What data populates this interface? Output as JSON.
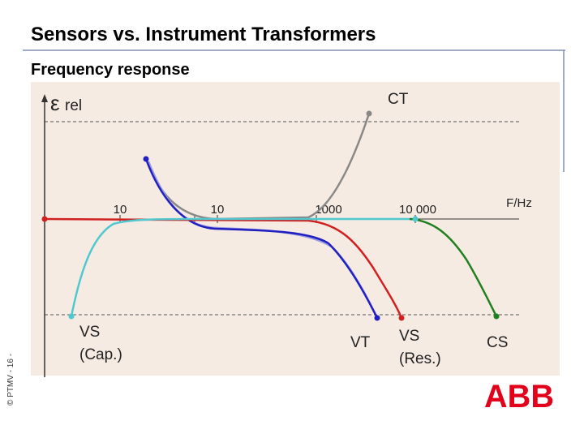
{
  "header": {
    "title": "Sensors vs. Instrument Transformers",
    "subtitle": "Frequency response"
  },
  "axes": {
    "y_label": "ε",
    "y_label_sub": "rel",
    "x_label": "F/Hz",
    "ticks": [
      "10",
      "10",
      "1000",
      "10 000"
    ]
  },
  "curves": [
    {
      "label": "CT"
    },
    {
      "label": "VT"
    },
    {
      "label": "VS\n(Res.)"
    },
    {
      "label": "VS\n(Cap.)"
    },
    {
      "label": "CS"
    }
  ],
  "footer": {
    "copyright": "© PTMV - 16 -",
    "logo": "ABB"
  }
}
